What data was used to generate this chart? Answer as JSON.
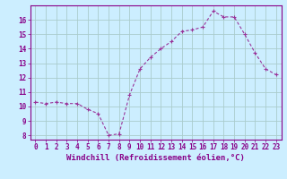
{
  "x": [
    0,
    1,
    2,
    3,
    4,
    5,
    6,
    7,
    8,
    9,
    10,
    11,
    12,
    13,
    14,
    15,
    16,
    17,
    18,
    19,
    20,
    21,
    22,
    23
  ],
  "y": [
    10.3,
    10.2,
    10.3,
    10.2,
    10.2,
    9.8,
    9.5,
    8.0,
    8.1,
    10.8,
    12.6,
    13.4,
    14.0,
    14.5,
    15.2,
    15.3,
    15.5,
    16.6,
    16.2,
    16.2,
    15.0,
    13.7,
    12.6,
    12.2
  ],
  "line_color": "#993399",
  "marker": "+",
  "marker_size": 3,
  "bg_color": "#cceeff",
  "grid_color": "#aacccc",
  "xlabel": "Windchill (Refroidissement éolien,°C)",
  "ylim": [
    7.7,
    17.0
  ],
  "xlim": [
    -0.5,
    23.5
  ],
  "yticks": [
    8,
    9,
    10,
    11,
    12,
    13,
    14,
    15,
    16
  ],
  "xticks": [
    0,
    1,
    2,
    3,
    4,
    5,
    6,
    7,
    8,
    9,
    10,
    11,
    12,
    13,
    14,
    15,
    16,
    17,
    18,
    19,
    20,
    21,
    22,
    23
  ],
  "tick_label_fontsize": 5.5,
  "xlabel_fontsize": 6.5,
  "axis_text_color": "#880088",
  "tick_color": "#880088",
  "spine_color": "#880088"
}
